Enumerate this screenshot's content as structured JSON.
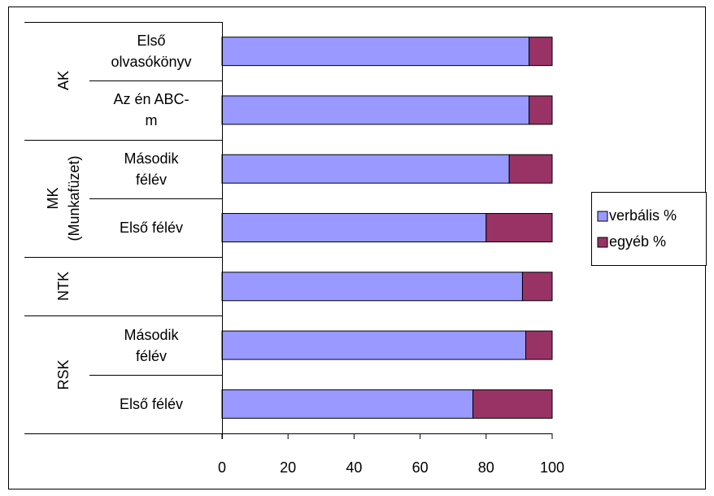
{
  "chart_data": {
    "type": "bar",
    "orientation": "horizontal",
    "stacked": true,
    "groups": [
      {
        "name": "AK",
        "categories": [
          "Első olvasókönyv",
          "Az én ABC-m"
        ]
      },
      {
        "name": "MK (Munkafüzet)",
        "categories": [
          "Második félév",
          "Első félév"
        ]
      },
      {
        "name": "NTK",
        "categories": [
          null
        ]
      },
      {
        "name": "RSK",
        "categories": [
          "Második félév",
          "Első félév"
        ]
      }
    ],
    "series": [
      {
        "name": "verbális %",
        "color": "#9999ff",
        "values": [
          93,
          93,
          87,
          80,
          91,
          92,
          76
        ]
      },
      {
        "name": "egyéb %",
        "color": "#993366",
        "values": [
          7,
          7,
          13,
          20,
          9,
          8,
          24
        ]
      }
    ],
    "xlim": [
      0,
      100
    ],
    "xticks": [
      0,
      20,
      40,
      60,
      80,
      100
    ],
    "legend": "right"
  }
}
